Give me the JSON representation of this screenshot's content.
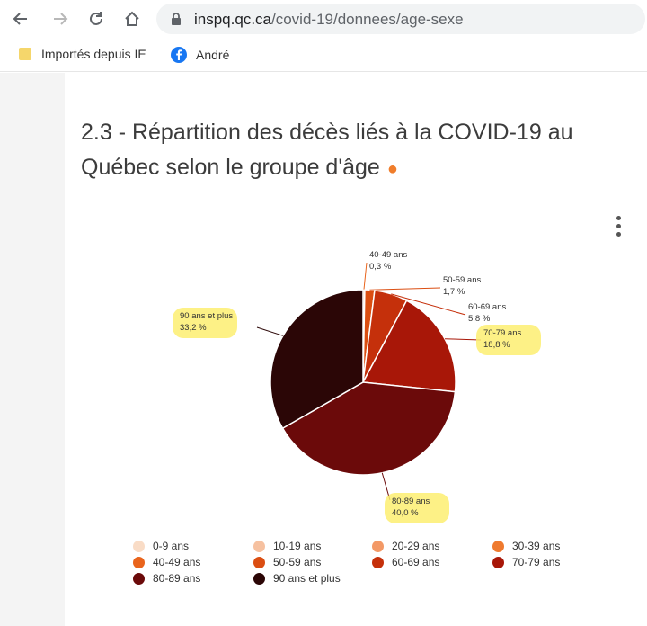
{
  "browser": {
    "url_host": "inspq.qc.ca",
    "url_path": "/covid-19/donnees/age-sexe",
    "bookmarks": [
      {
        "label": "Importés depuis IE",
        "icon": "folder-icon"
      },
      {
        "label": "André",
        "icon": "facebook-icon"
      }
    ]
  },
  "page": {
    "title_line1": "2.3 - Répartition des décès liés à la COVID-19 au",
    "title_line2": "Québec selon le groupe d'âge"
  },
  "chart_data": {
    "type": "pie",
    "title": "2.3 - Répartition des décès liés à la COVID-19 au Québec selon le groupe d'âge",
    "slices": [
      {
        "label": "0-9 ans",
        "value": 0.0,
        "color": "#f9dcc6"
      },
      {
        "label": "10-19 ans",
        "value": 0.0,
        "color": "#f6c1a0"
      },
      {
        "label": "20-29 ans",
        "value": 0.0,
        "color": "#f39966"
      },
      {
        "label": "30-39 ans",
        "value": 0.0,
        "color": "#ef7a2e"
      },
      {
        "label": "40-49 ans",
        "value": 0.3,
        "value_label": "0,3 %",
        "color": "#e9641c"
      },
      {
        "label": "50-59 ans",
        "value": 1.7,
        "value_label": "1,7 %",
        "color": "#db4e12"
      },
      {
        "label": "60-69 ans",
        "value": 5.8,
        "value_label": "5,8 %",
        "color": "#c5300b"
      },
      {
        "label": "70-79 ans",
        "value": 18.8,
        "value_label": "18,8 %",
        "color": "#a81708"
      },
      {
        "label": "80-89 ans",
        "value": 40.0,
        "value_label": "40,0 %",
        "color": "#6b0a0a"
      },
      {
        "label": "90 ans et plus",
        "value": 33.2,
        "value_label": "33,2 %",
        "color": "#2b0606"
      }
    ],
    "highlight_color": "#fdee71"
  }
}
